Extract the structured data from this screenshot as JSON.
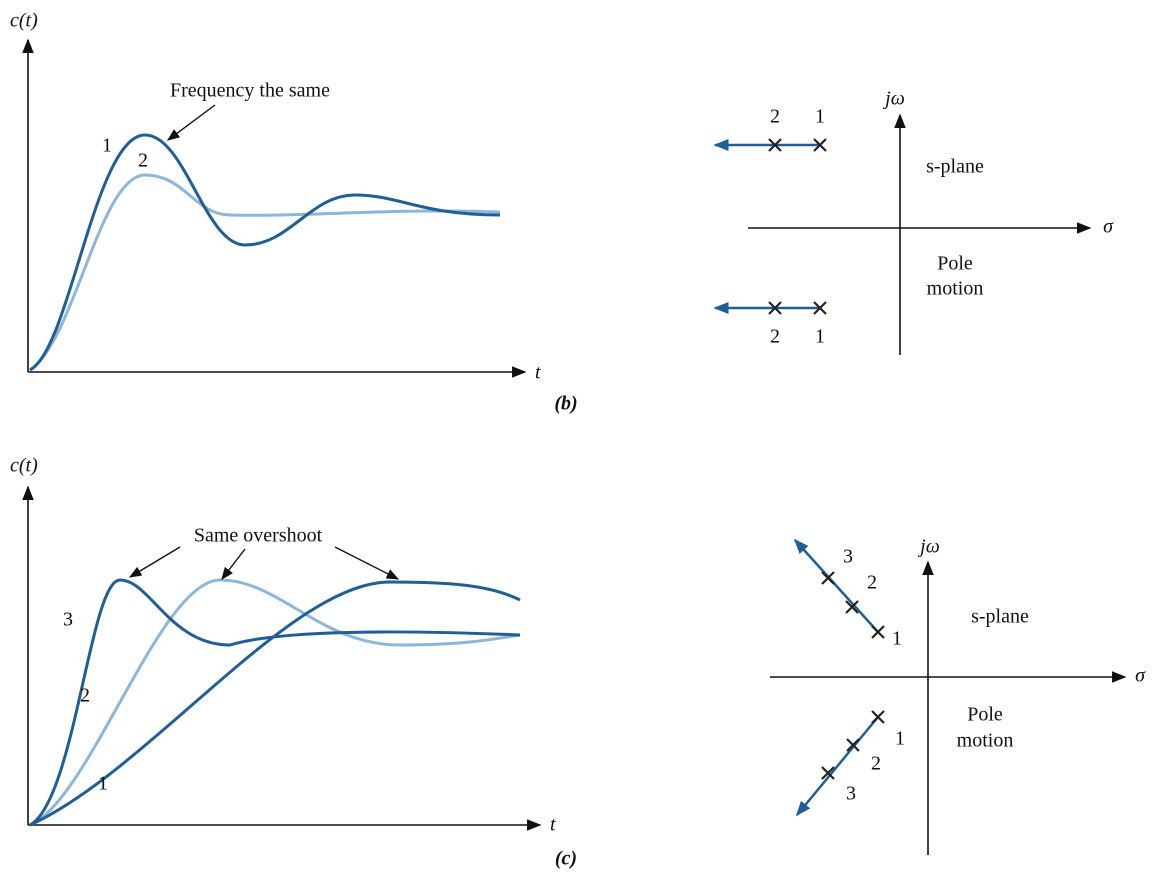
{
  "panels": [
    {
      "label": "(b)",
      "response": {
        "y_label": "c(t)",
        "x_label": "t",
        "annotation": "Frequency the same",
        "curve_labels": [
          "1",
          "2"
        ]
      },
      "s_plane": {
        "y_label": "jω",
        "x_label": "σ",
        "plane_label": "s-plane",
        "motion_label": [
          "Pole",
          "motion"
        ],
        "pole_labels": [
          "2",
          "1",
          "2",
          "1"
        ]
      }
    },
    {
      "label": "(c)",
      "response": {
        "y_label": "c(t)",
        "x_label": "t",
        "annotation": "Same overshoot",
        "curve_labels": [
          "3",
          "2",
          "1"
        ]
      },
      "s_plane": {
        "y_label": "jω",
        "x_label": "σ",
        "plane_label": "s-plane",
        "motion_label": [
          "Pole",
          "motion"
        ],
        "pole_labels": [
          "3",
          "2",
          "1",
          "1",
          "2",
          "3"
        ]
      }
    }
  ]
}
